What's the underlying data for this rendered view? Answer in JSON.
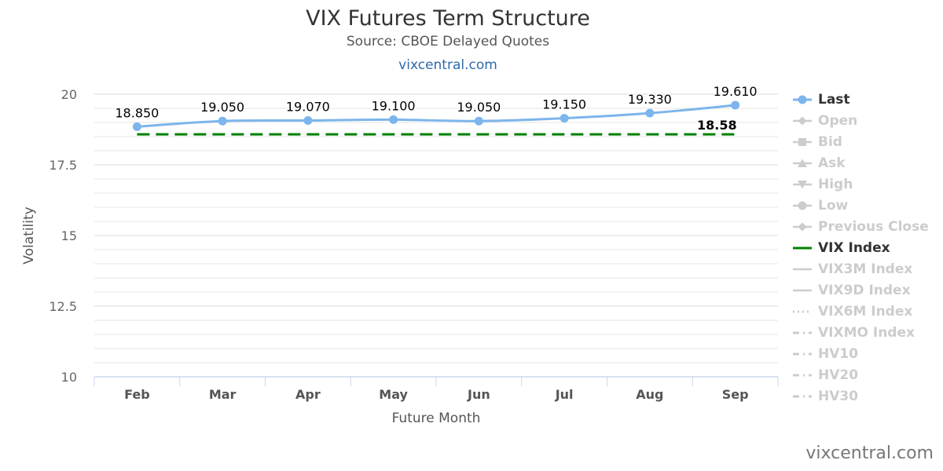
{
  "header": {
    "title": "VIX Futures Term Structure",
    "subtitle": "Source: CBOE Delayed Quotes",
    "link": "vixcentral.com"
  },
  "credit": "vixcentral.com",
  "colors": {
    "last": "#7cb5ec",
    "vix": "#008000",
    "inactive": "#cccccc",
    "grid": "#e6e6e6",
    "axis": "#ccd6eb"
  },
  "legend": {
    "items": [
      {
        "label": "Last",
        "symbol": "line-circle",
        "active": true,
        "color": "#7cb5ec"
      },
      {
        "label": "Open",
        "symbol": "line-diamond",
        "active": false
      },
      {
        "label": "Bid",
        "symbol": "line-square",
        "active": false
      },
      {
        "label": "Ask",
        "symbol": "line-triangle",
        "active": false
      },
      {
        "label": "High",
        "symbol": "line-triangle-down",
        "active": false
      },
      {
        "label": "Low",
        "symbol": "line-circle",
        "active": false
      },
      {
        "label": "Previous Close",
        "symbol": "line-diamond",
        "active": false
      },
      {
        "label": "VIX Index",
        "symbol": "line",
        "active": true,
        "color": "#008000"
      },
      {
        "label": "VIX3M Index",
        "symbol": "line",
        "active": false
      },
      {
        "label": "VIX9D Index",
        "symbol": "line",
        "active": false
      },
      {
        "label": "VIX6M Index",
        "symbol": "dotted",
        "active": false
      },
      {
        "label": "VIXMO Index",
        "symbol": "dashdot",
        "active": false
      },
      {
        "label": "HV10",
        "symbol": "dashdot",
        "active": false
      },
      {
        "label": "HV20",
        "symbol": "dashdot",
        "active": false
      },
      {
        "label": "HV30",
        "symbol": "dashdot",
        "active": false
      }
    ]
  },
  "chart_data": {
    "type": "line",
    "categories": [
      "Feb",
      "Mar",
      "Apr",
      "May",
      "Jun",
      "Jul",
      "Aug",
      "Sep"
    ],
    "xlabel": "Future Month",
    "ylabel": "Volatility",
    "ylim": [
      10,
      20
    ],
    "yticks": [
      10,
      12.5,
      15,
      17.5,
      20
    ],
    "ytick_labels": [
      "10",
      "12.5",
      "15",
      "17.5",
      "20"
    ],
    "grid": true,
    "legend_position": "right",
    "series": [
      {
        "name": "Last",
        "values": [
          18.85,
          19.05,
          19.07,
          19.1,
          19.05,
          19.15,
          19.33,
          19.61
        ],
        "labels": [
          "18.850",
          "19.050",
          "19.070",
          "19.100",
          "19.050",
          "19.150",
          "19.330",
          "19.610"
        ],
        "style": "solid",
        "marker": "circle"
      },
      {
        "name": "VIX Index",
        "values": [
          18.58,
          18.58,
          18.58,
          18.58,
          18.58,
          18.58,
          18.58,
          18.58
        ],
        "style": "dashed",
        "end_label": "18.58"
      }
    ]
  }
}
